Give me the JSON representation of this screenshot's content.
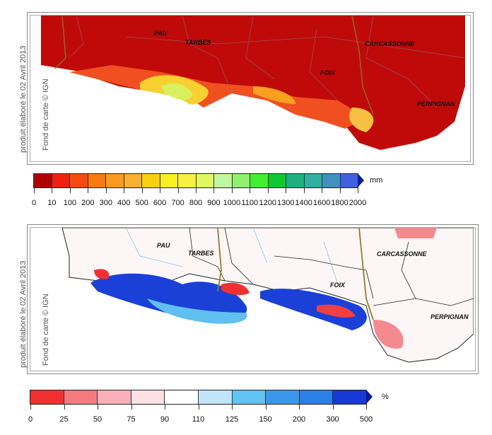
{
  "top_map": {
    "side_label": "produit élaboré le 02 Avril 2013",
    "side_label2": "Fond de carte © IGN",
    "cities": [
      "PAU",
      "TARBES",
      "CARCASSONNE",
      "FOIX",
      "PERPIGNAN"
    ],
    "colorbar": {
      "unit": "mm",
      "ticks": [
        "0",
        "10",
        "100",
        "200",
        "300",
        "400",
        "500",
        "600",
        "700",
        "800",
        "900",
        "1000",
        "1100",
        "1200",
        "1300",
        "1400",
        "1600",
        "1800",
        "2000"
      ],
      "colors": [
        "#b00000",
        "#f02010",
        "#f84a10",
        "#f87a10",
        "#f89a20",
        "#f8b030",
        "#f8d010",
        "#f8f020",
        "#f8f040",
        "#e0f860",
        "#c0f8a0",
        "#90f070",
        "#40f030",
        "#10c830",
        "#20b080",
        "#30b0a0",
        "#4090c0",
        "#4060e0"
      ],
      "arrow_color": "#10208a"
    }
  },
  "bottom_map": {
    "side_label": "produit élaboré le 02 Avril 2013",
    "side_label2": "Fond de carte © IGN",
    "cities": [
      "PAU",
      "TARBES",
      "CARCASSONNE",
      "FOIX",
      "PERPIGNAN"
    ],
    "colorbar": {
      "unit": "%",
      "ticks": [
        "0",
        "25",
        "50",
        "75",
        "90",
        "110",
        "125",
        "150",
        "200",
        "300",
        "500"
      ],
      "colors": [
        "#f03030",
        "#f47a80",
        "#f8b0b8",
        "#fce0e4",
        "#ffffff",
        "#c0e4f8",
        "#60c4f4",
        "#3a98ec",
        "#2a80e8",
        "#1838d8"
      ],
      "arrow_color": "#0a1a9a"
    }
  }
}
